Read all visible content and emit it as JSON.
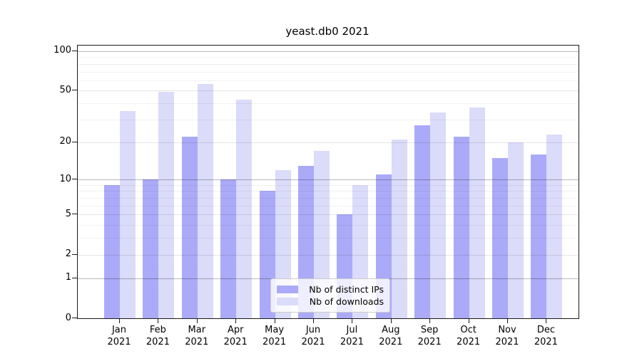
{
  "title": "yeast.db0 2021",
  "colors": {
    "ips_bar": "#aaaaf8",
    "downloads_bar": "#dbdbfa",
    "spine": "#1a1a1a"
  },
  "legend": {
    "items": [
      {
        "label": "Nb of distinct IPs",
        "series": "ips"
      },
      {
        "label": "Nb of downloads",
        "series": "downloads"
      }
    ]
  },
  "chart_data": {
    "type": "bar",
    "title": "yeast.db0 2021",
    "scale": "log1p",
    "categories": [
      "Jan 2021",
      "Feb 2021",
      "Mar 2021",
      "Apr 2021",
      "May 2021",
      "Jun 2021",
      "Jul 2021",
      "Aug 2021",
      "Sep 2021",
      "Oct 2021",
      "Nov 2021",
      "Dec 2021"
    ],
    "months": [
      "Jan",
      "Feb",
      "Mar",
      "Apr",
      "May",
      "Jun",
      "Jul",
      "Aug",
      "Sep",
      "Oct",
      "Nov",
      "Dec"
    ],
    "year": "2021",
    "series": [
      {
        "name": "Nb of distinct IPs",
        "color": "#aaaaf8",
        "values": [
          9,
          10,
          22,
          10,
          8,
          13,
          5,
          11,
          27,
          22,
          15,
          16
        ]
      },
      {
        "name": "Nb of downloads",
        "color": "#dbdbfa",
        "values": [
          35,
          49,
          56,
          43,
          12,
          17,
          9,
          21,
          34,
          37,
          20,
          23
        ]
      }
    ],
    "ylim": [
      0,
      100
    ],
    "y_ticks": [
      0,
      1,
      2,
      5,
      10,
      20,
      50,
      100
    ],
    "y_major_ticks": [
      1,
      10,
      100
    ],
    "y_minor_gridlines": [
      3,
      4,
      6,
      7,
      8,
      9,
      30,
      40,
      60,
      70,
      80,
      90
    ],
    "grid": "horizontal",
    "legend_position": "lower center"
  }
}
